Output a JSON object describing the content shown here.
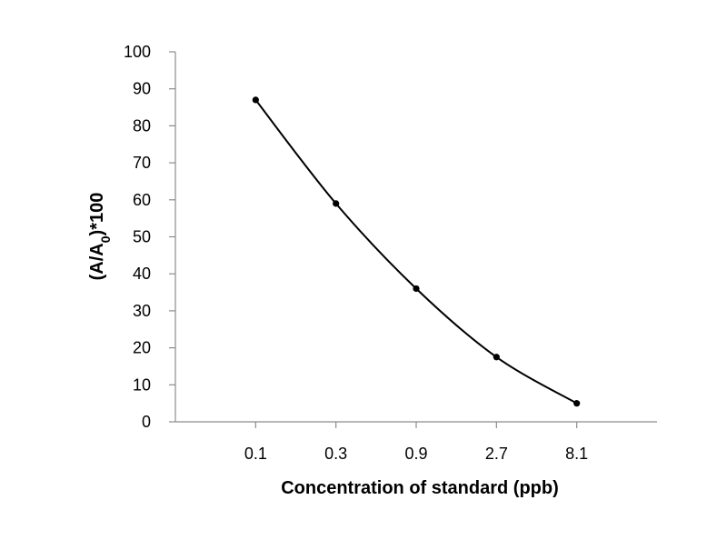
{
  "chart_data": {
    "type": "line",
    "categories": [
      "0.1",
      "0.3",
      "0.9",
      "2.7",
      "8.1"
    ],
    "series": [
      {
        "values": [
          87,
          59,
          36,
          17.5,
          5
        ]
      }
    ],
    "xlabel": "Concentration of standard (ppb)",
    "ylabel": {
      "prefix": "(A/A",
      "subscript": "0",
      "suffix": ")*100"
    },
    "ylim": [
      0,
      100
    ],
    "yticks": [
      "0",
      "10",
      "20",
      "30",
      "40",
      "50",
      "60",
      "70",
      "80",
      "90",
      "100"
    ],
    "line_color": "#000000",
    "axis_color": "#8c8c8c",
    "smooth": true,
    "grid": false,
    "legend": "none"
  }
}
